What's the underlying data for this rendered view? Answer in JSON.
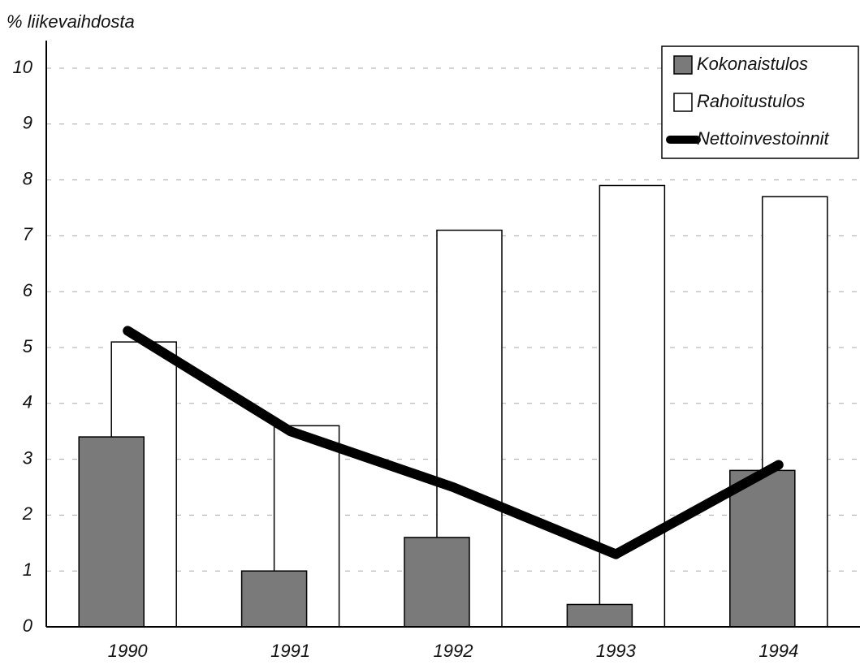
{
  "chart_data": {
    "type": "bar",
    "y_axis_label": "% liikevaihdosta",
    "categories": [
      "1990",
      "1991",
      "1992",
      "1993",
      "1994"
    ],
    "series": [
      {
        "name": "Kokonaistulos",
        "type": "bar",
        "color": "#7a7a7a",
        "values": [
          3.4,
          1.0,
          1.6,
          0.4,
          2.8
        ]
      },
      {
        "name": "Rahoitustulos",
        "type": "bar",
        "color": "#ffffff",
        "values": [
          5.1,
          3.6,
          7.1,
          7.9,
          7.7
        ]
      },
      {
        "name": "Nettoinvestoinnit",
        "type": "line",
        "color": "#000000",
        "values": [
          5.3,
          3.5,
          2.5,
          1.3,
          2.9
        ]
      }
    ],
    "ylim": [
      0,
      10
    ],
    "yticks": [
      0,
      1,
      2,
      3,
      4,
      5,
      6,
      7,
      8,
      9,
      10
    ],
    "grid": true,
    "legend": "top-right"
  }
}
